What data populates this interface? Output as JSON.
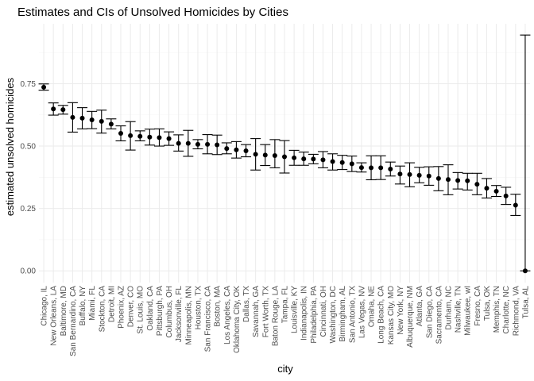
{
  "chart_data": {
    "type": "scatter",
    "title": "Estimates and CIs of Unsolved Homicides by Cities",
    "xlabel": "city",
    "ylabel": "estimated unsolved homicides",
    "ylim": [
      -0.047,
      0.99
    ],
    "yticks": [
      0.0,
      0.25,
      0.5,
      0.75
    ],
    "ytick_labels": [
      "0.00",
      "0.25",
      "0.50",
      "0.75"
    ],
    "grid": true,
    "legend": "none",
    "colors": {
      "point": "#000000",
      "errorbar": "#000000",
      "grid": "#ebebeb"
    },
    "categories": [
      "Chicago, IL",
      "New Orleans, LA",
      "Baltimore, MD",
      "San Bernardino, CA",
      "Buffalo, NY",
      "Miami, FL",
      "Stockton, CA",
      "Detroit, MI",
      "Phoenix, AZ",
      "Denver, CO",
      "St. Louis, MO",
      "Oakland, CA",
      "Pittsburgh, PA",
      "Columbus, OH",
      "Jacksonville, FL",
      "Minneapolis, MN",
      "Houston, TX",
      "San Francisco, CA",
      "Boston, MA",
      "Los Angeles, CA",
      "Oklahoma City, OK",
      "Dallas, TX",
      "Savannah, GA",
      "Fort Worth, TX",
      "Baton Rouge, LA",
      "Tampa, FL",
      "Louisville, KY",
      "Indianapolis, IN",
      "Philadelphia, PA",
      "Cincinnati, OH",
      "Washington, DC",
      "Birmingham, AL",
      "San Antonio, TX",
      "Las Vegas, NV",
      "Omaha, NE",
      "Long Beach, CA",
      "Kansas City, MO",
      "New York, NY",
      "Albuquerque, NM",
      "Atlanta, GA",
      "San Diego, CA",
      "Sacramento, CA",
      "Durham, NC",
      "Nashville, TN",
      "Milwaukee, wI",
      "Fresno, CA",
      "Tulsa, OK",
      "Memphis, TN",
      "Charlotte, NC",
      "Richmond, VA",
      "Tulsa, AL"
    ],
    "series": [
      {
        "estimate": [
          0.736,
          0.649,
          0.646,
          0.615,
          0.612,
          0.605,
          0.599,
          0.588,
          0.551,
          0.542,
          0.539,
          0.536,
          0.534,
          0.53,
          0.511,
          0.511,
          0.507,
          0.507,
          0.505,
          0.49,
          0.485,
          0.481,
          0.467,
          0.464,
          0.462,
          0.457,
          0.453,
          0.449,
          0.448,
          0.445,
          0.438,
          0.434,
          0.429,
          0.414,
          0.413,
          0.413,
          0.408,
          0.388,
          0.386,
          0.383,
          0.38,
          0.37,
          0.366,
          0.362,
          0.361,
          0.347,
          0.331,
          0.319,
          0.3,
          0.263,
          0.0
        ],
        "ci_low": [
          0.724,
          0.624,
          0.628,
          0.556,
          0.569,
          0.57,
          0.552,
          0.569,
          0.521,
          0.484,
          0.521,
          0.504,
          0.5,
          0.503,
          0.48,
          0.459,
          0.489,
          0.469,
          0.466,
          0.469,
          0.452,
          0.457,
          0.404,
          0.422,
          0.413,
          0.392,
          0.423,
          0.423,
          0.429,
          0.413,
          0.404,
          0.406,
          0.398,
          0.396,
          0.365,
          0.366,
          0.38,
          0.348,
          0.337,
          0.353,
          0.343,
          0.321,
          0.305,
          0.328,
          0.324,
          0.305,
          0.292,
          0.298,
          0.266,
          0.222,
          0.0
        ],
        "ci_high": [
          0.749,
          0.673,
          0.663,
          0.674,
          0.654,
          0.639,
          0.644,
          0.609,
          0.581,
          0.598,
          0.561,
          0.568,
          0.569,
          0.557,
          0.545,
          0.563,
          0.526,
          0.546,
          0.544,
          0.513,
          0.518,
          0.506,
          0.53,
          0.506,
          0.526,
          0.522,
          0.483,
          0.476,
          0.467,
          0.478,
          0.469,
          0.463,
          0.46,
          0.433,
          0.461,
          0.461,
          0.436,
          0.42,
          0.433,
          0.415,
          0.417,
          0.418,
          0.425,
          0.394,
          0.391,
          0.391,
          0.37,
          0.342,
          0.335,
          0.307,
          0.945
        ]
      }
    ]
  }
}
